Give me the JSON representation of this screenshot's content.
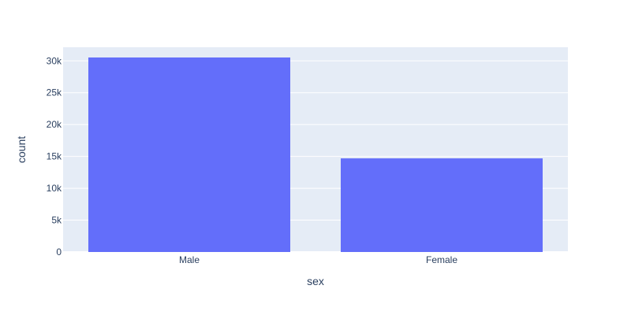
{
  "chart_data": {
    "type": "bar",
    "categories": [
      "Male",
      "Female"
    ],
    "values": [
      30527,
      14695
    ],
    "xlabel": "sex",
    "ylabel": "count",
    "ylim": [
      0,
      32134
    ],
    "yticks": [
      0,
      5000,
      10000,
      15000,
      20000,
      25000,
      30000
    ],
    "ytick_labels": [
      "0",
      "5k",
      "10k",
      "15k",
      "20k",
      "25k",
      "30k"
    ],
    "grid": true,
    "colors": {
      "bar": "#636efa",
      "plot_bg": "#e5ecf6",
      "text": "#2a3f5f"
    }
  }
}
